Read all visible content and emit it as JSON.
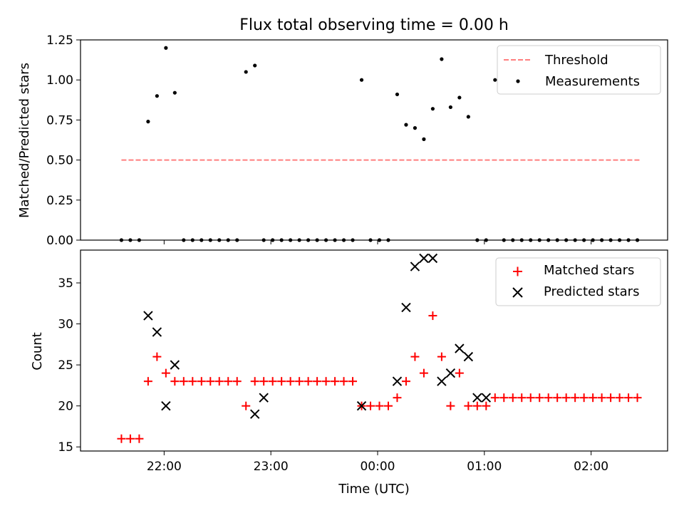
{
  "figure": {
    "title": "Flux total observing time = 0.00 h"
  },
  "chart_data": [
    {
      "type": "scatter",
      "title": "Flux total observing time = 0.00 h",
      "xlabel": "",
      "ylabel": "Matched/Predicted stars",
      "ylim": [
        0,
        1.25
      ],
      "yticks": [
        "0.00",
        "0.25",
        "0.50",
        "0.75",
        "1.00",
        "1.25"
      ],
      "xticks": [
        "22:00",
        "23:00",
        "00:00",
        "01:00",
        "02:00"
      ],
      "show_xticklabels": false,
      "legend": {
        "placement": "top-right",
        "entries": [
          "Threshold",
          "Measurements"
        ]
      },
      "threshold": {
        "name": "Threshold",
        "value": 0.5,
        "x_start": "21:36",
        "x_end": "02:28",
        "color": "#ff7f7f"
      },
      "series": [
        {
          "name": "Measurements",
          "color": "#000000",
          "x": [
            "21:36",
            "21:41",
            "21:46",
            "21:51",
            "21:56",
            "22:01",
            "22:06",
            "22:11",
            "22:16",
            "22:21",
            "22:26",
            "22:31",
            "22:36",
            "22:41",
            "22:46",
            "22:51",
            "22:56",
            "23:01",
            "23:06",
            "23:11",
            "23:16",
            "23:21",
            "23:26",
            "23:31",
            "23:36",
            "23:41",
            "23:46",
            "23:51",
            "23:56",
            "00:01",
            "00:06",
            "00:11",
            "00:16",
            "00:21",
            "00:26",
            "00:31",
            "00:36",
            "00:41",
            "00:46",
            "00:51",
            "00:56",
            "01:01",
            "01:06",
            "01:11",
            "01:16",
            "01:21",
            "01:26",
            "01:31",
            "01:36",
            "01:41",
            "01:46",
            "01:51",
            "01:56",
            "02:01",
            "02:06",
            "02:11",
            "02:16",
            "02:21",
            "02:26"
          ],
          "y": [
            0,
            0,
            0,
            0.74,
            0.9,
            1.2,
            0.92,
            0,
            0,
            0,
            0,
            0,
            0,
            0,
            1.05,
            1.09,
            0,
            0,
            0,
            0,
            0,
            0,
            0,
            0,
            0,
            0,
            0,
            1.0,
            0,
            0,
            0,
            0.91,
            0.72,
            0.7,
            0.63,
            0.82,
            1.13,
            0.83,
            0.89,
            0.77,
            0,
            0,
            1.0,
            0,
            0,
            0,
            0,
            0,
            0,
            0,
            0,
            0,
            0,
            0,
            0,
            0,
            0,
            0,
            0
          ]
        }
      ]
    },
    {
      "type": "scatter",
      "title": "",
      "xlabel": "Time (UTC)",
      "ylabel": "Count",
      "ylim": [
        14.5,
        39
      ],
      "yticks": [
        "15",
        "20",
        "25",
        "30",
        "35"
      ],
      "xticks": [
        "22:00",
        "23:00",
        "00:00",
        "01:00",
        "02:00"
      ],
      "legend": {
        "placement": "top-right",
        "entries": [
          "Matched stars",
          "Predicted stars"
        ]
      },
      "series": [
        {
          "name": "Matched stars",
          "color": "#ff0000",
          "marker": "+",
          "x": [
            "21:36",
            "21:41",
            "21:46",
            "21:51",
            "21:56",
            "22:01",
            "22:06",
            "22:11",
            "22:16",
            "22:21",
            "22:26",
            "22:31",
            "22:36",
            "22:41",
            "22:46",
            "22:51",
            "22:56",
            "23:01",
            "23:06",
            "23:11",
            "23:16",
            "23:21",
            "23:26",
            "23:31",
            "23:36",
            "23:41",
            "23:46",
            "23:51",
            "23:56",
            "00:01",
            "00:06",
            "00:11",
            "00:16",
            "00:21",
            "00:26",
            "00:31",
            "00:36",
            "00:41",
            "00:46",
            "00:51",
            "00:56",
            "01:01",
            "01:06",
            "01:11",
            "01:16",
            "01:21",
            "01:26",
            "01:31",
            "01:36",
            "01:41",
            "01:46",
            "01:51",
            "01:56",
            "02:01",
            "02:06",
            "02:11",
            "02:16",
            "02:21",
            "02:26"
          ],
          "y": [
            16,
            16,
            16,
            23,
            26,
            24,
            23,
            23,
            23,
            23,
            23,
            23,
            23,
            23,
            20,
            23,
            23,
            23,
            23,
            23,
            23,
            23,
            23,
            23,
            23,
            23,
            23,
            20,
            20,
            20,
            20,
            21,
            23,
            26,
            24,
            31,
            26,
            20,
            24,
            20,
            20,
            20,
            21,
            21,
            21,
            21,
            21,
            21,
            21,
            21,
            21,
            21,
            21,
            21,
            21,
            21,
            21,
            21,
            21
          ]
        },
        {
          "name": "Predicted stars",
          "color": "#000000",
          "marker": "x",
          "x": [
            "21:51",
            "21:56",
            "22:01",
            "22:06",
            "22:51",
            "22:56",
            "23:51",
            "00:11",
            "00:16",
            "00:21",
            "00:26",
            "00:31",
            "00:36",
            "00:41",
            "00:46",
            "00:51",
            "00:56",
            "01:01"
          ],
          "y": [
            31,
            29,
            20,
            25,
            19,
            21,
            20,
            23,
            32,
            37,
            38,
            38,
            23,
            24,
            27,
            26,
            21,
            21
          ]
        }
      ]
    }
  ]
}
